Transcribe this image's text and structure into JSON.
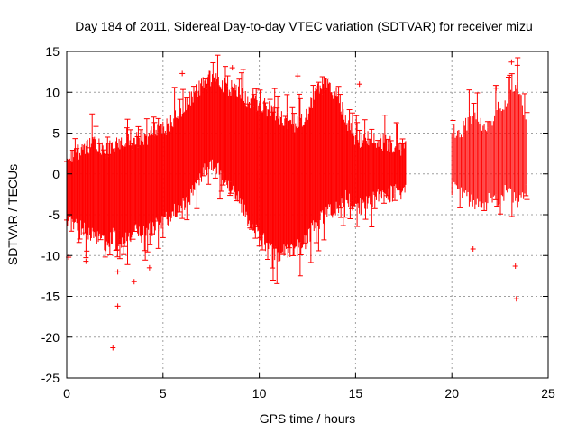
{
  "chart_data": {
    "type": "scatter",
    "title": "Day 184 of 2011, Sidereal Day-to-day VTEC variation (SDTVAR) for receiver mizu",
    "xlabel": "GPS time / hours",
    "ylabel": "SDTVAR / TECUs",
    "xlim": [
      0,
      25
    ],
    "ylim": [
      -25,
      15
    ],
    "xticks": [
      0,
      5,
      10,
      15,
      20,
      25
    ],
    "yticks": [
      -25,
      -20,
      -15,
      -10,
      -5,
      0,
      5,
      10,
      15
    ],
    "grid": true,
    "series": [
      {
        "name": "SDTVAR",
        "color": "#ff0000",
        "marker": "+",
        "error_bars": true,
        "envelope": {
          "x": [
            0.0,
            0.5,
            1.0,
            1.5,
            2.0,
            2.5,
            3.0,
            3.5,
            4.0,
            4.5,
            5.0,
            5.5,
            6.0,
            6.5,
            7.0,
            7.5,
            8.0,
            8.5,
            9.0,
            9.5,
            10.0,
            10.5,
            11.0,
            11.5,
            12.0,
            12.5,
            13.0,
            13.5,
            14.0,
            14.5,
            15.0,
            15.5,
            16.0,
            16.5,
            17.0,
            17.6
          ],
          "upper": [
            1.0,
            2.0,
            2.5,
            3.5,
            2.5,
            3.0,
            3.5,
            3.5,
            4.0,
            4.5,
            5.0,
            6.0,
            7.5,
            9.0,
            10.5,
            11.3,
            10.8,
            10.0,
            9.5,
            8.5,
            8.0,
            7.5,
            6.5,
            6.0,
            5.5,
            7.0,
            10.0,
            10.5,
            9.5,
            6.5,
            3.5,
            4.0,
            3.5,
            3.5,
            3.0,
            2.5
          ],
          "lower": [
            -5.0,
            -6.0,
            -6.5,
            -7.0,
            -8.0,
            -7.0,
            -8.0,
            -6.5,
            -7.0,
            -6.0,
            -5.5,
            -4.5,
            -3.5,
            -2.0,
            0.5,
            1.5,
            0.5,
            -1.0,
            -3.0,
            -5.5,
            -7.0,
            -8.5,
            -9.5,
            -9.0,
            -8.5,
            -7.5,
            -5.5,
            -4.5,
            -3.5,
            -2.5,
            -4.0,
            -3.0,
            -2.5,
            -2.0,
            -2.0,
            -1.5
          ]
        },
        "envelope2": {
          "x": [
            20.0,
            20.5,
            21.0,
            21.5,
            22.0,
            22.5,
            23.0,
            23.5,
            23.9
          ],
          "upper": [
            4.5,
            5.0,
            6.5,
            6.0,
            5.0,
            8.0,
            9.0,
            10.0,
            6.0
          ],
          "lower": [
            -1.5,
            -2.0,
            -3.0,
            -4.0,
            -2.5,
            -2.5,
            -1.5,
            -3.0,
            -1.0
          ]
        },
        "outliers": [
          {
            "x": 2.4,
            "y": -21.3
          },
          {
            "x": 2.65,
            "y": -16.2
          },
          {
            "x": 2.65,
            "y": -12.0
          },
          {
            "x": 3.5,
            "y": -13.2
          },
          {
            "x": 4.3,
            "y": -11.5
          },
          {
            "x": 1.0,
            "y": -10.7
          },
          {
            "x": 23.3,
            "y": -11.3
          },
          {
            "x": 23.35,
            "y": -15.3
          },
          {
            "x": 23.1,
            "y": 13.7
          },
          {
            "x": 23.4,
            "y": 13.3
          },
          {
            "x": 22.3,
            "y": 10.5
          },
          {
            "x": 12.0,
            "y": 12.0
          },
          {
            "x": 8.6,
            "y": 13.0
          },
          {
            "x": 6.0,
            "y": 12.3
          },
          {
            "x": 15.2,
            "y": 11.0
          },
          {
            "x": 10.05,
            "y": -7.8
          },
          {
            "x": 21.1,
            "y": -9.2
          },
          {
            "x": 0.1,
            "y": -10.2
          }
        ]
      }
    ]
  }
}
